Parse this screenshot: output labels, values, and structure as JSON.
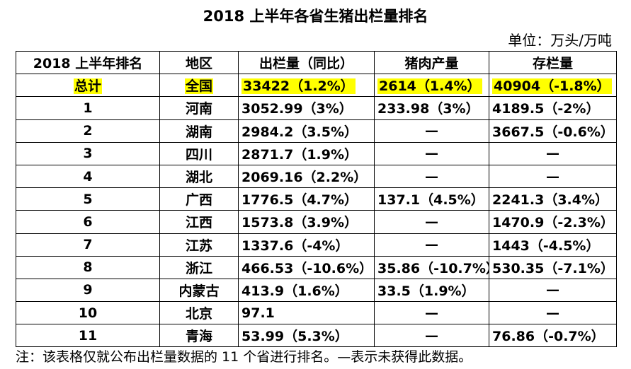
{
  "title": "2018 上半年各省生猪出栏量排名",
  "unit": "单位：万头/万吨",
  "headers": [
    "2018 上半年排名",
    "地区",
    "出栏量（同比）",
    "猪肉产量",
    "存栏量"
  ],
  "total": {
    "rank": "总计",
    "region": "全国",
    "output": "33422（1.2%）",
    "pork": "2614（1.4%）",
    "stock": "40904（-1.8%）"
  },
  "rows": [
    {
      "rank": "1",
      "region": "河南",
      "output": "3052.99（3%）",
      "pork": "233.98（3%）",
      "stock": "4189.5（-2%）"
    },
    {
      "rank": "2",
      "region": "湖南",
      "output": "2984.2（3.5%）",
      "pork": "—",
      "stock": "3667.5（-0.6%）"
    },
    {
      "rank": "3",
      "region": "四川",
      "output": "2871.7（1.9%）",
      "pork": "—",
      "stock": "—"
    },
    {
      "rank": "4",
      "region": "湖北",
      "output": "2069.16（2.2%）",
      "pork": "—",
      "stock": "—"
    },
    {
      "rank": "5",
      "region": "广西",
      "output": "1776.5（4.7%）",
      "pork": "137.1（4.5%）",
      "stock": "2241.3（3.4%）"
    },
    {
      "rank": "6",
      "region": "江西",
      "output": "1573.8（3.9%）",
      "pork": "—",
      "stock": "1470.9（-2.3%）"
    },
    {
      "rank": "7",
      "region": "江苏",
      "output": "1337.6（-4%）",
      "pork": "—",
      "stock": "1443（-4.5%）"
    },
    {
      "rank": "8",
      "region": "浙江",
      "output": "466.53（-10.6%）",
      "pork": "35.86（-10.7%）",
      "stock": "530.35（-7.1%）"
    },
    {
      "rank": "9",
      "region": "内蒙古",
      "output": "413.9（1.6%）",
      "pork": "33.5（1.9%）",
      "stock": "—"
    },
    {
      "rank": "10",
      "region": "北京",
      "output": "97.1",
      "pork": "—",
      "stock": "—"
    },
    {
      "rank": "11",
      "region": "青海",
      "output": "53.99（5.3%）",
      "pork": "—",
      "stock": "76.86（-0.7%）"
    }
  ],
  "note": "注：该表格仅就公布出栏量数据的 11 个省进行排名。—表示未获得此数据。",
  "colors": {
    "highlight": "#ffff00"
  }
}
